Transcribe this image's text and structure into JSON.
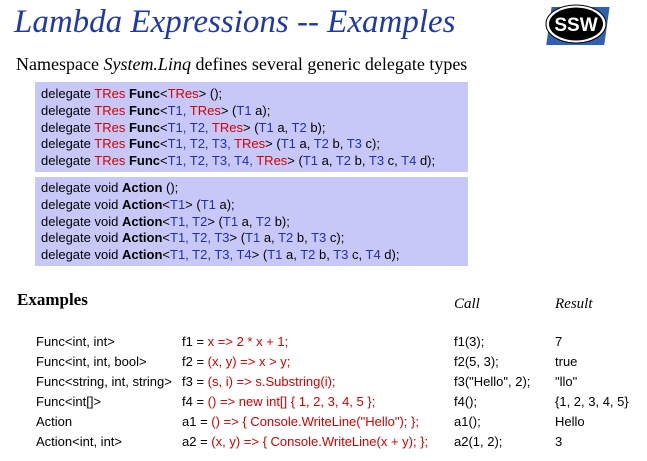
{
  "title": "Lambda Expressions -- Examples",
  "logo_text": "SSW",
  "subtitle": {
    "pre": "Namespace ",
    "ns": "System.Linq",
    "post": " defines several generic delegate types"
  },
  "func_lines": [
    [
      [
        "d",
        "delegate "
      ],
      [
        "r",
        "TRes "
      ],
      [
        "k",
        "Func"
      ],
      [
        "d",
        "<"
      ],
      [
        "r",
        "TRes"
      ],
      [
        "d",
        "> ();"
      ]
    ],
    [
      [
        "d",
        "delegate "
      ],
      [
        "r",
        "TRes "
      ],
      [
        "k",
        "Func"
      ],
      [
        "d",
        "<"
      ],
      [
        "b",
        "T1, "
      ],
      [
        "r",
        "TRes"
      ],
      [
        "d",
        "> ("
      ],
      [
        "b",
        "T1"
      ],
      [
        "d",
        " a);"
      ]
    ],
    [
      [
        "d",
        "delegate "
      ],
      [
        "r",
        "TRes "
      ],
      [
        "k",
        "Func"
      ],
      [
        "d",
        "<"
      ],
      [
        "b",
        "T1, T2, "
      ],
      [
        "r",
        "TRes"
      ],
      [
        "d",
        "> ("
      ],
      [
        "b",
        "T1"
      ],
      [
        "d",
        " a, "
      ],
      [
        "b",
        "T2"
      ],
      [
        "d",
        " b);"
      ]
    ],
    [
      [
        "d",
        "delegate "
      ],
      [
        "r",
        "TRes "
      ],
      [
        "k",
        "Func"
      ],
      [
        "d",
        "<"
      ],
      [
        "b",
        "T1, T2, T3, "
      ],
      [
        "r",
        "TRes"
      ],
      [
        "d",
        "> ("
      ],
      [
        "b",
        "T1"
      ],
      [
        "d",
        " a, "
      ],
      [
        "b",
        "T2"
      ],
      [
        "d",
        " b, "
      ],
      [
        "b",
        "T3"
      ],
      [
        "d",
        " c);"
      ]
    ],
    [
      [
        "d",
        "delegate "
      ],
      [
        "r",
        "TRes "
      ],
      [
        "k",
        "Func"
      ],
      [
        "d",
        "<"
      ],
      [
        "b",
        "T1, T2, T3, T4, "
      ],
      [
        "r",
        "TRes"
      ],
      [
        "d",
        "> ("
      ],
      [
        "b",
        "T1"
      ],
      [
        "d",
        " a, "
      ],
      [
        "b",
        "T2"
      ],
      [
        "d",
        " b, "
      ],
      [
        "b",
        "T3"
      ],
      [
        "d",
        " c, "
      ],
      [
        "b",
        "T4"
      ],
      [
        "d",
        " d);"
      ]
    ]
  ],
  "action_lines": [
    [
      [
        "d",
        "delegate void "
      ],
      [
        "k",
        "Action"
      ],
      [
        "d",
        " ();"
      ]
    ],
    [
      [
        "d",
        "delegate void "
      ],
      [
        "k",
        "Action"
      ],
      [
        "d",
        "<"
      ],
      [
        "b",
        "T1"
      ],
      [
        "d",
        "> ("
      ],
      [
        "b",
        "T1"
      ],
      [
        "d",
        " a);"
      ]
    ],
    [
      [
        "d",
        "delegate void "
      ],
      [
        "k",
        "Action"
      ],
      [
        "d",
        "<"
      ],
      [
        "b",
        "T1, T2"
      ],
      [
        "d",
        "> ("
      ],
      [
        "b",
        "T1"
      ],
      [
        "d",
        " a, "
      ],
      [
        "b",
        "T2"
      ],
      [
        "d",
        " b);"
      ]
    ],
    [
      [
        "d",
        "delegate void "
      ],
      [
        "k",
        "Action"
      ],
      [
        "d",
        "<"
      ],
      [
        "b",
        "T1, T2, T3"
      ],
      [
        "d",
        "> ("
      ],
      [
        "b",
        "T1"
      ],
      [
        "d",
        " a, "
      ],
      [
        "b",
        "T2"
      ],
      [
        "d",
        " b, "
      ],
      [
        "b",
        "T3"
      ],
      [
        "d",
        " c);"
      ]
    ],
    [
      [
        "d",
        "delegate void "
      ],
      [
        "k",
        "Action"
      ],
      [
        "d",
        "<"
      ],
      [
        "b",
        "T1, T2, T3, T4"
      ],
      [
        "d",
        "> ("
      ],
      [
        "b",
        "T1"
      ],
      [
        "d",
        " a, "
      ],
      [
        "b",
        "T2"
      ],
      [
        "d",
        " b, "
      ],
      [
        "b",
        "T3"
      ],
      [
        "d",
        " c, "
      ],
      [
        "b",
        "T4"
      ],
      [
        "d",
        " d);"
      ]
    ]
  ],
  "examples_heading": "Examples",
  "col_call": "Call",
  "col_result": "Result",
  "examples": [
    {
      "type": "Func<int, int>",
      "prefix": "f1 = ",
      "expr": "x => 2 * x + 1;",
      "call": "f1(3);",
      "result": "7"
    },
    {
      "type": "Func<int, int, bool>",
      "prefix": "f2 = ",
      "expr": "(x, y) => x > y;",
      "call": "f2(5, 3);",
      "result": "true"
    },
    {
      "type": "Func<string, int, string>",
      "prefix": "f3 = ",
      "expr": "(s, i) => s.Substring(i);",
      "call": "f3(\"Hello\", 2);",
      "result": "\"llo\""
    },
    {
      "type": "Func<int[]>",
      "prefix": "f4 = ",
      "expr": "() => new int[] { 1, 2, 3, 4, 5 };",
      "call": "f4();",
      "result": "{1, 2, 3, 4, 5}"
    },
    {
      "type": "Action",
      "prefix": "a1 = ",
      "expr": "() => { Console.WriteLine(\"Hello\"); };",
      "call": "a1();",
      "result": "Hello"
    },
    {
      "type": "Action<int, int>",
      "prefix": "a2 = ",
      "expr": "(x, y) => { Console.WriteLine(x + y); };",
      "call": "a2(1, 2);",
      "result": "3"
    }
  ],
  "colors": {
    "title": "#1f3aa8",
    "box": "#c8c8f8",
    "red": "#d40000",
    "blue": "#1f2fb8"
  }
}
